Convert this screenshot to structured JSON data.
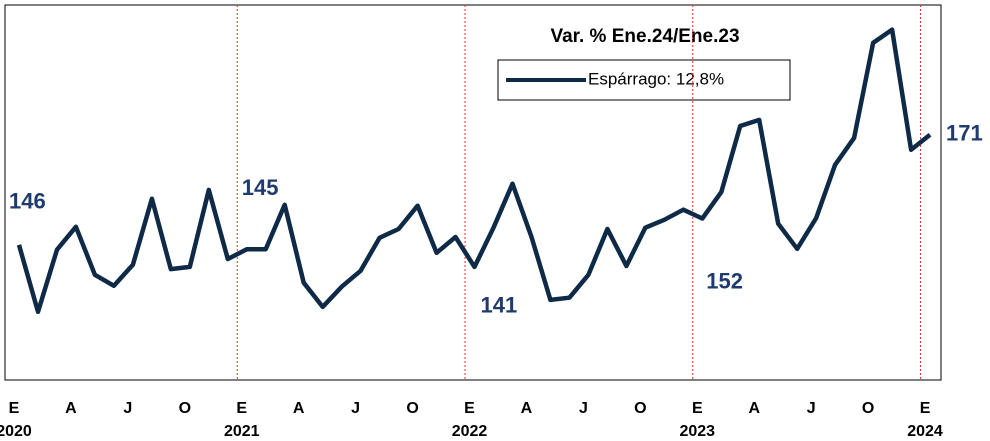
{
  "chart_data": {
    "type": "line",
    "title": "Var. % Ene.24/Ene.23",
    "categories": [
      "E",
      null,
      null,
      "A",
      null,
      null,
      "J",
      null,
      null,
      "O",
      null,
      null,
      "E",
      null,
      null,
      "A",
      null,
      null,
      "J",
      null,
      null,
      "O",
      null,
      null,
      "E",
      null,
      null,
      "A",
      null,
      null,
      "J",
      null,
      null,
      "O",
      null,
      null,
      "E",
      null,
      null,
      "A",
      null,
      null,
      "J",
      null,
      null,
      "O",
      null,
      null,
      "E"
    ],
    "years": [
      "2020",
      null,
      null,
      null,
      null,
      null,
      null,
      null,
      null,
      null,
      null,
      null,
      "2021",
      null,
      null,
      null,
      null,
      null,
      null,
      null,
      null,
      null,
      null,
      null,
      "2022",
      null,
      null,
      null,
      null,
      null,
      null,
      null,
      null,
      null,
      null,
      null,
      "2023",
      null,
      null,
      null,
      null,
      null,
      null,
      null,
      null,
      null,
      null,
      null,
      "2024"
    ],
    "series": [
      {
        "name": "Espárrago: 12,8%",
        "color": "#0f2a47",
        "values": [
          146,
          130.8,
          144.9,
          150.1,
          139.2,
          136.7,
          141.5,
          156.5,
          140.5,
          141.0,
          158.5,
          142.8,
          145,
          145,
          155.1,
          137.4,
          131.9,
          136.5,
          140.1,
          147.6,
          149.6,
          154.9,
          144.2,
          147.8,
          141,
          149.9,
          159.9,
          147.8,
          133.5,
          134.0,
          139.2,
          149.6,
          141.2,
          149.9,
          151.7,
          154.0,
          152,
          158.0,
          173.0,
          174.4,
          150.8,
          145.1,
          152.1,
          164.2,
          170.3,
          191.9,
          194.9,
          167.6,
          171
        ]
      }
    ],
    "ylim": [
      115.3,
      200.5
    ]
  }
}
